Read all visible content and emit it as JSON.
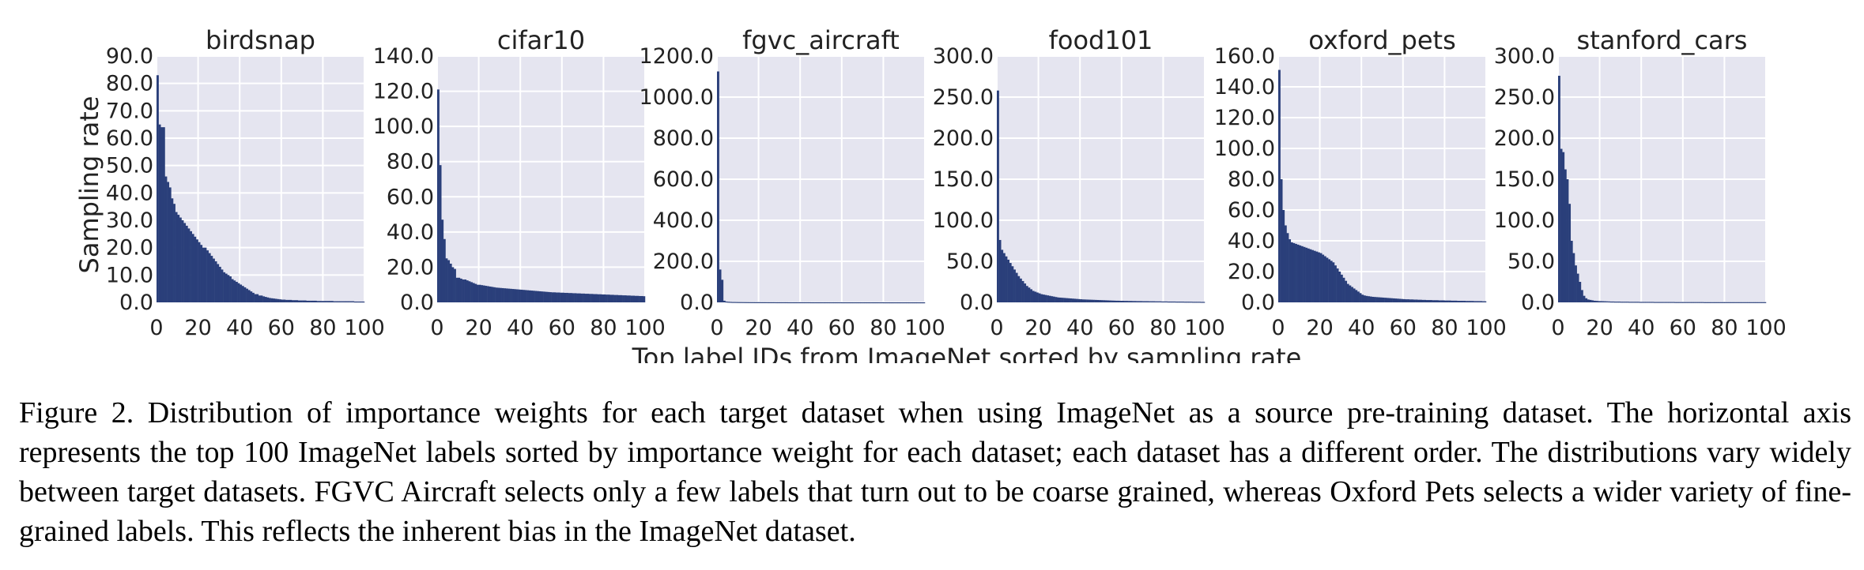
{
  "figure": {
    "ylabel": "Sampling rate",
    "xlabel": "Top label IDs from ImageNet sorted by sampling rate"
  },
  "colors": {
    "bar": "#2a3f7a",
    "plot_bg": "#e5e5f0",
    "grid": "#ffffff"
  },
  "caption": "Figure 2. Distribution of importance weights for each target dataset when using ImageNet as a source pre-training dataset. The horizontal axis represents the top 100 ImageNet labels sorted by importance weight for each dataset; each dataset has a different order. The distributions vary widely between target datasets. FGVC Aircraft selects only a few labels that turn out to be coarse grained, whereas Oxford Pets selects a wider variety of fine-grained labels. This reflects the inherent bias in the ImageNet dataset.",
  "chart_data": [
    {
      "type": "bar",
      "title": "birdsnap",
      "xlim": [
        0,
        100
      ],
      "ylim": [
        0,
        90
      ],
      "xticks": [
        "0",
        "20",
        "40",
        "60",
        "80",
        "100"
      ],
      "yticks": [
        "0.0",
        "10.0",
        "20.0",
        "30.0",
        "40.0",
        "50.0",
        "60.0",
        "70.0",
        "80.0",
        "90.0"
      ],
      "grid": true,
      "values": [
        83,
        65,
        64,
        64,
        46,
        44,
        42,
        38,
        36,
        33,
        32,
        31,
        30,
        29,
        28,
        27,
        26,
        25,
        24,
        23,
        22,
        21,
        20,
        20,
        19,
        18,
        17,
        16,
        15,
        14,
        13,
        12,
        11,
        10.5,
        10,
        9.5,
        8.5,
        8,
        7.5,
        7,
        6.5,
        6,
        5.5,
        5,
        4.5,
        4,
        3.5,
        3,
        3,
        2.5,
        2.5,
        2.2,
        2,
        1.8,
        1.6,
        1.5,
        1.4,
        1.3,
        1.2,
        1.1,
        1.0,
        1.0,
        0.9,
        0.9,
        0.9,
        0.8,
        0.8,
        0.8,
        0.7,
        0.7,
        0.7,
        0.7,
        0.6,
        0.6,
        0.6,
        0.6,
        0.6,
        0.5,
        0.5,
        0.5,
        0.5,
        0.5,
        0.5,
        0.5,
        0.5,
        0.4,
        0.4,
        0.4,
        0.4,
        0.4,
        0.4,
        0.4,
        0.4,
        0.4,
        0.4,
        0.3,
        0.3,
        0.3,
        0.3,
        0.3
      ]
    },
    {
      "type": "bar",
      "title": "cifar10",
      "xlim": [
        0,
        100
      ],
      "ylim": [
        0,
        140
      ],
      "xticks": [
        "0",
        "20",
        "40",
        "60",
        "80",
        "100"
      ],
      "yticks": [
        "0.0",
        "20.0",
        "40.0",
        "60.0",
        "80.0",
        "100.0",
        "120.0",
        "140.0"
      ],
      "grid": true,
      "values": [
        121,
        78,
        47,
        36,
        25,
        24,
        22,
        20,
        19,
        14,
        14,
        13.5,
        13,
        13,
        12.5,
        12,
        11.5,
        11,
        10.5,
        10,
        10,
        9.8,
        9.6,
        9.4,
        9.2,
        9.0,
        8.8,
        8.6,
        8.4,
        8.3,
        8.2,
        8.1,
        8.0,
        7.9,
        7.8,
        7.7,
        7.6,
        7.5,
        7.4,
        7.3,
        7.2,
        7.1,
        7.0,
        6.9,
        6.8,
        6.7,
        6.6,
        6.5,
        6.4,
        6.3,
        6.2,
        6.1,
        6.0,
        5.9,
        5.8,
        5.7,
        5.7,
        5.6,
        5.6,
        5.5,
        5.5,
        5.4,
        5.4,
        5.3,
        5.3,
        5.2,
        5.2,
        5.1,
        5.1,
        5.0,
        5.0,
        4.9,
        4.9,
        4.8,
        4.8,
        4.7,
        4.7,
        4.6,
        4.6,
        4.5,
        4.5,
        4.4,
        4.4,
        4.3,
        4.3,
        4.2,
        4.2,
        4.1,
        4.1,
        4.0,
        4.0,
        3.9,
        3.9,
        3.8,
        3.8,
        3.7,
        3.7,
        3.6,
        3.6,
        3.5
      ]
    },
    {
      "type": "bar",
      "title": "fgvc_aircraft",
      "xlim": [
        0,
        100
      ],
      "ylim": [
        0,
        1200
      ],
      "xticks": [
        "0",
        "20",
        "40",
        "60",
        "80",
        "100"
      ],
      "yticks": [
        "0.0",
        "200.0",
        "400.0",
        "600.0",
        "800.0",
        "1000.0",
        "1200.0"
      ],
      "grid": true,
      "values": [
        1125,
        160,
        110,
        8,
        4,
        3,
        2.5,
        2,
        2,
        1.8,
        1.6,
        1.5,
        1.4,
        1.3,
        1.2,
        1.1,
        1.0,
        1.0,
        0.9,
        0.9,
        0.9,
        0.8,
        0.8,
        0.8,
        0.7,
        0.7,
        0.7,
        0.7,
        0.6,
        0.6,
        0.6,
        0.6,
        0.6,
        0.6,
        0.5,
        0.5,
        0.5,
        0.5,
        0.5,
        0.5,
        0.5,
        0.5,
        0.5,
        0.5,
        0.5,
        0.4,
        0.4,
        0.4,
        0.4,
        0.4,
        0.4,
        0.4,
        0.4,
        0.4,
        0.4,
        0.4,
        0.4,
        0.4,
        0.4,
        0.4,
        0.3,
        0.3,
        0.3,
        0.3,
        0.3,
        0.3,
        0.3,
        0.3,
        0.3,
        0.3,
        0.3,
        0.3,
        0.3,
        0.3,
        0.3,
        0.3,
        0.3,
        0.3,
        0.3,
        0.3,
        0.2,
        0.2,
        0.2,
        0.2,
        0.2,
        0.2,
        0.2,
        0.2,
        0.2,
        0.2,
        0.2,
        0.2,
        0.2,
        0.2,
        0.2,
        0.2,
        0.2,
        0.2,
        0.2,
        0.2
      ]
    },
    {
      "type": "bar",
      "title": "food101",
      "xlim": [
        0,
        100
      ],
      "ylim": [
        0,
        300
      ],
      "xticks": [
        "0",
        "20",
        "40",
        "60",
        "80",
        "100"
      ],
      "yticks": [
        "0.0",
        "50.0",
        "100.0",
        "150.0",
        "200.0",
        "250.0",
        "300.0"
      ],
      "grid": true,
      "values": [
        258,
        76,
        64,
        60,
        56,
        52,
        48,
        44,
        40,
        36,
        32,
        29,
        26,
        23,
        20,
        18,
        16,
        14,
        13,
        12,
        11,
        10,
        9.5,
        9,
        8.5,
        8,
        7.5,
        7,
        6.5,
        6,
        5.8,
        5.6,
        5.4,
        5.2,
        5,
        4.8,
        4.6,
        4.4,
        4.2,
        4,
        3.8,
        3.6,
        3.5,
        3.4,
        3.3,
        3.2,
        3.1,
        3,
        2.9,
        2.8,
        2.7,
        2.6,
        2.5,
        2.4,
        2.3,
        2.2,
        2.1,
        2,
        2,
        1.9,
        1.9,
        1.8,
        1.8,
        1.7,
        1.7,
        1.6,
        1.6,
        1.5,
        1.5,
        1.5,
        1.4,
        1.4,
        1.4,
        1.3,
        1.3,
        1.3,
        1.2,
        1.2,
        1.2,
        1.1,
        1.1,
        1.1,
        1.0,
        1.0,
        1.0,
        1.0,
        0.9,
        0.9,
        0.9,
        0.9,
        0.8,
        0.8,
        0.8,
        0.8,
        0.7,
        0.7,
        0.7,
        0.7,
        0.6,
        0.6
      ]
    },
    {
      "type": "bar",
      "title": "oxford_pets",
      "xlim": [
        0,
        100
      ],
      "ylim": [
        0,
        160
      ],
      "xticks": [
        "0",
        "20",
        "40",
        "60",
        "80",
        "100"
      ],
      "yticks": [
        "0.0",
        "20.0",
        "40.0",
        "60.0",
        "80.0",
        "100.0",
        "120.0",
        "140.0",
        "160.0"
      ],
      "grid": true,
      "values": [
        151,
        80,
        60,
        50,
        45,
        41,
        39,
        38.5,
        38,
        37.5,
        37,
        36.5,
        36,
        35.5,
        35,
        34.5,
        34,
        33.5,
        33,
        32.5,
        32,
        31,
        30,
        29,
        28,
        27,
        26,
        24,
        22,
        20,
        18,
        16,
        14,
        12,
        11,
        10,
        9,
        8,
        7,
        6,
        5,
        4.5,
        4.2,
        4,
        3.8,
        3.6,
        3.5,
        3.4,
        3.3,
        3.2,
        3.1,
        3.0,
        2.9,
        2.8,
        2.7,
        2.6,
        2.5,
        2.4,
        2.3,
        2.2,
        2.1,
        2.0,
        2.0,
        1.9,
        1.9,
        1.8,
        1.8,
        1.7,
        1.7,
        1.6,
        1.6,
        1.5,
        1.5,
        1.5,
        1.4,
        1.4,
        1.4,
        1.3,
        1.3,
        1.3,
        1.2,
        1.2,
        1.2,
        1.1,
        1.1,
        1.1,
        1.0,
        1.0,
        1.0,
        1.0,
        0.9,
        0.9,
        0.9,
        0.9,
        0.8,
        0.8,
        0.8,
        0.8,
        0.7,
        0.7
      ]
    },
    {
      "type": "bar",
      "title": "stanford_cars",
      "xlim": [
        0,
        100
      ],
      "ylim": [
        0,
        300
      ],
      "xticks": [
        "0",
        "20",
        "40",
        "60",
        "80",
        "100"
      ],
      "yticks": [
        "0.0",
        "50.0",
        "100.0",
        "150.0",
        "200.0",
        "250.0",
        "300.0"
      ],
      "grid": true,
      "values": [
        276,
        187,
        183,
        162,
        150,
        120,
        75,
        60,
        45,
        35,
        25,
        15,
        8,
        5,
        3.5,
        3,
        2.5,
        2,
        1.8,
        1.6,
        1.5,
        1.4,
        1.3,
        1.2,
        1.1,
        1.0,
        1.0,
        0.9,
        0.9,
        0.9,
        0.8,
        0.8,
        0.8,
        0.8,
        0.7,
        0.7,
        0.7,
        0.7,
        0.7,
        0.6,
        0.6,
        0.6,
        0.6,
        0.6,
        0.6,
        0.6,
        0.5,
        0.5,
        0.5,
        0.5,
        0.5,
        0.5,
        0.5,
        0.5,
        0.5,
        0.5,
        0.4,
        0.4,
        0.4,
        0.4,
        0.4,
        0.4,
        0.4,
        0.4,
        0.4,
        0.4,
        0.4,
        0.4,
        0.4,
        0.4,
        0.3,
        0.3,
        0.3,
        0.3,
        0.3,
        0.3,
        0.3,
        0.3,
        0.3,
        0.3,
        0.3,
        0.3,
        0.3,
        0.3,
        0.3,
        0.3,
        0.3,
        0.3,
        0.3,
        0.3,
        0.3,
        0.3,
        0.3,
        0.3,
        0.3,
        0.3,
        0.3,
        0.3,
        0.3,
        0.3
      ]
    }
  ]
}
